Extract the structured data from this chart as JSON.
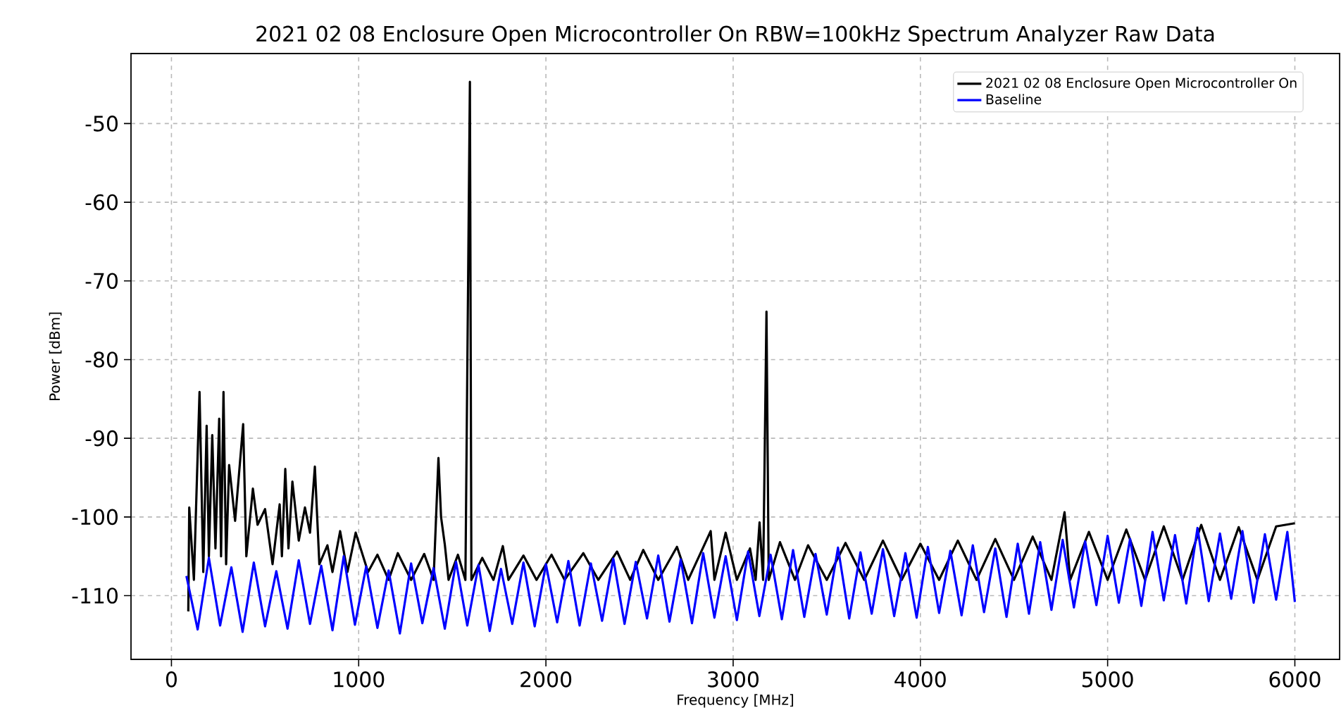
{
  "chart_data": {
    "type": "line",
    "title": "2021 02 08 Enclosure Open Microcontroller On RBW=100kHz Spectrum Analyzer Raw Data",
    "xlabel": "Frequency [MHz]",
    "ylabel": "Power [dBm]",
    "xlim": [
      -216,
      6239
    ],
    "ylim": [
      -118.1,
      -41.1
    ],
    "xticks": [
      0,
      1000,
      2000,
      3000,
      4000,
      5000,
      6000
    ],
    "yticks": [
      -110,
      -100,
      -90,
      -80,
      -70,
      -60,
      -50
    ],
    "grid": true,
    "legend": "top right",
    "series": [
      {
        "name": "2021 02 08 Enclosure Open Microcontroller On",
        "color": "#000000",
        "x": [
          90,
          95,
          120,
          150,
          170,
          188,
          200,
          218,
          235,
          255,
          265,
          278,
          292,
          308,
          340,
          383,
          400,
          435,
          460,
          500,
          540,
          578,
          590,
          608,
          625,
          646,
          680,
          713,
          740,
          766,
          790,
          833,
          860,
          901,
          940,
          984,
          1050,
          1100,
          1160,
          1209,
          1280,
          1350,
          1400,
          1426,
          1440,
          1460,
          1480,
          1530,
          1570,
          1594,
          1602,
          1660,
          1720,
          1770,
          1800,
          1880,
          1950,
          2030,
          2100,
          2200,
          2280,
          2380,
          2450,
          2520,
          2600,
          2700,
          2760,
          2880,
          2900,
          2960,
          3020,
          3090,
          3120,
          3141,
          3160,
          3178,
          3190,
          3250,
          3330,
          3400,
          3500,
          3600,
          3700,
          3800,
          3900,
          4000,
          4100,
          4200,
          4300,
          4400,
          4500,
          4600,
          4700,
          4770,
          4800,
          4900,
          5000,
          5100,
          5200,
          5300,
          5400,
          5500,
          5600,
          5700,
          5800,
          5900,
          6000
        ],
        "values": [
          -112,
          -98.8,
          -108,
          -84.1,
          -107,
          -88.4,
          -105,
          -89.6,
          -104,
          -87.5,
          -105,
          -84.1,
          -106,
          -93.4,
          -100.5,
          -88.2,
          -105,
          -96.4,
          -101,
          -99,
          -106,
          -98.4,
          -105,
          -93.9,
          -104,
          -95.5,
          -103,
          -98.8,
          -102,
          -93.6,
          -106,
          -103.6,
          -107,
          -101.8,
          -107,
          -102,
          -107,
          -104.8,
          -108,
          -104.6,
          -108,
          -104.7,
          -108,
          -92.5,
          -100,
          -103.5,
          -108,
          -104.8,
          -108,
          -44.7,
          -108,
          -105.2,
          -108,
          -103.7,
          -108,
          -104.9,
          -108,
          -104.8,
          -108,
          -104.6,
          -108,
          -104.4,
          -108,
          -104.2,
          -108,
          -103.8,
          -108,
          -101.8,
          -108,
          -102,
          -108,
          -104,
          -108,
          -100.7,
          -108,
          -73.9,
          -108,
          -103.2,
          -108,
          -103.6,
          -108,
          -103.3,
          -108,
          -103,
          -108,
          -103.4,
          -108,
          -103,
          -108,
          -102.8,
          -108,
          -102.5,
          -108,
          -99.4,
          -108,
          -101.9,
          -108,
          -101.6,
          -108,
          -101.2,
          -108,
          -101,
          -108,
          -101.3,
          -108,
          -101.2,
          -100.8
        ]
      },
      {
        "name": "Baseline",
        "color": "#0000ff",
        "x": [
          80,
          140,
          200,
          260,
          320,
          380,
          440,
          500,
          560,
          620,
          680,
          740,
          800,
          860,
          920,
          980,
          1040,
          1100,
          1160,
          1220,
          1280,
          1340,
          1400,
          1460,
          1520,
          1580,
          1640,
          1700,
          1760,
          1820,
          1880,
          1940,
          2000,
          2060,
          2120,
          2180,
          2240,
          2300,
          2360,
          2420,
          2480,
          2540,
          2600,
          2660,
          2720,
          2780,
          2840,
          2900,
          2960,
          3020,
          3080,
          3140,
          3200,
          3260,
          3320,
          3380,
          3440,
          3500,
          3560,
          3620,
          3680,
          3740,
          3800,
          3860,
          3920,
          3980,
          4040,
          4100,
          4160,
          4220,
          4280,
          4340,
          4400,
          4460,
          4520,
          4580,
          4640,
          4700,
          4760,
          4820,
          4880,
          4940,
          5000,
          5060,
          5120,
          5180,
          5240,
          5300,
          5360,
          5420,
          5480,
          5540,
          5600,
          5660,
          5720,
          5780,
          5840,
          5900,
          5960,
          6000
        ],
        "values": [
          -107.5,
          -114.3,
          -105.2,
          -113.8,
          -106.4,
          -114.6,
          -105.8,
          -113.9,
          -106.9,
          -114.2,
          -105.5,
          -113.6,
          -106.2,
          -114.4,
          -105,
          -113.7,
          -106.3,
          -114.1,
          -106.8,
          -114.8,
          -105.9,
          -113.5,
          -106.5,
          -114.2,
          -105.7,
          -113.8,
          -106.1,
          -114.5,
          -106.6,
          -113.6,
          -105.8,
          -113.9,
          -106,
          -113.4,
          -105.6,
          -113.8,
          -105.9,
          -113.2,
          -105.3,
          -113.6,
          -105.7,
          -112.9,
          -104.9,
          -113.3,
          -105.4,
          -113.5,
          -104.6,
          -112.8,
          -105,
          -113.1,
          -104.4,
          -112.6,
          -104.8,
          -113,
          -104.2,
          -112.7,
          -104.7,
          -112.4,
          -103.9,
          -112.9,
          -104.5,
          -112.3,
          -104.1,
          -112.6,
          -104.6,
          -112.8,
          -103.8,
          -112.2,
          -104.3,
          -112.5,
          -103.6,
          -112.1,
          -104,
          -112.7,
          -103.4,
          -112.3,
          -103.2,
          -111.8,
          -102.9,
          -111.5,
          -103.1,
          -111.2,
          -102.4,
          -110.9,
          -102.8,
          -111.3,
          -101.9,
          -110.6,
          -102.3,
          -111,
          -101.4,
          -110.7,
          -102.1,
          -110.4,
          -101.8,
          -110.9,
          -102.2,
          -110.5,
          -101.9,
          -110.8
        ]
      }
    ]
  }
}
